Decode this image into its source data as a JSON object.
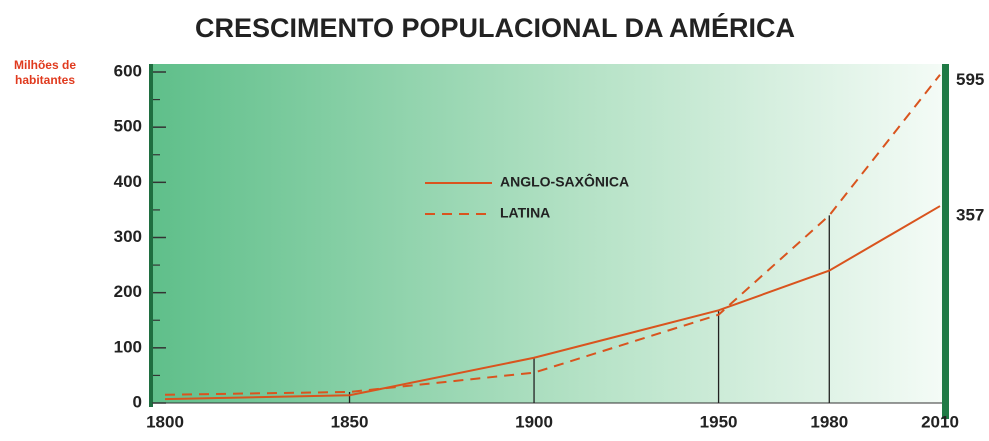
{
  "chart_data": {
    "type": "line",
    "title": "CRESCIMENTO POPULACIONAL DA AMÉRICA",
    "y_label": "Milhões de habitantes",
    "x": [
      1800,
      1850,
      1900,
      1950,
      1980,
      2010
    ],
    "xticks": [
      1800,
      1850,
      1900,
      1950,
      1980,
      2010
    ],
    "xlim": [
      1797,
      2012
    ],
    "ylim": [
      0,
      600
    ],
    "yticks": [
      0,
      100,
      200,
      300,
      400,
      500,
      600
    ],
    "series": [
      {
        "name": "ANGLO-SAXÔNICA",
        "color": "#d9541e",
        "dash": false,
        "values": [
          7,
          14,
          82,
          168,
          240,
          357
        ]
      },
      {
        "name": "LATINA",
        "color": "#d9541e",
        "dash": true,
        "values": [
          15,
          20,
          55,
          160,
          340,
          595
        ]
      }
    ]
  }
}
